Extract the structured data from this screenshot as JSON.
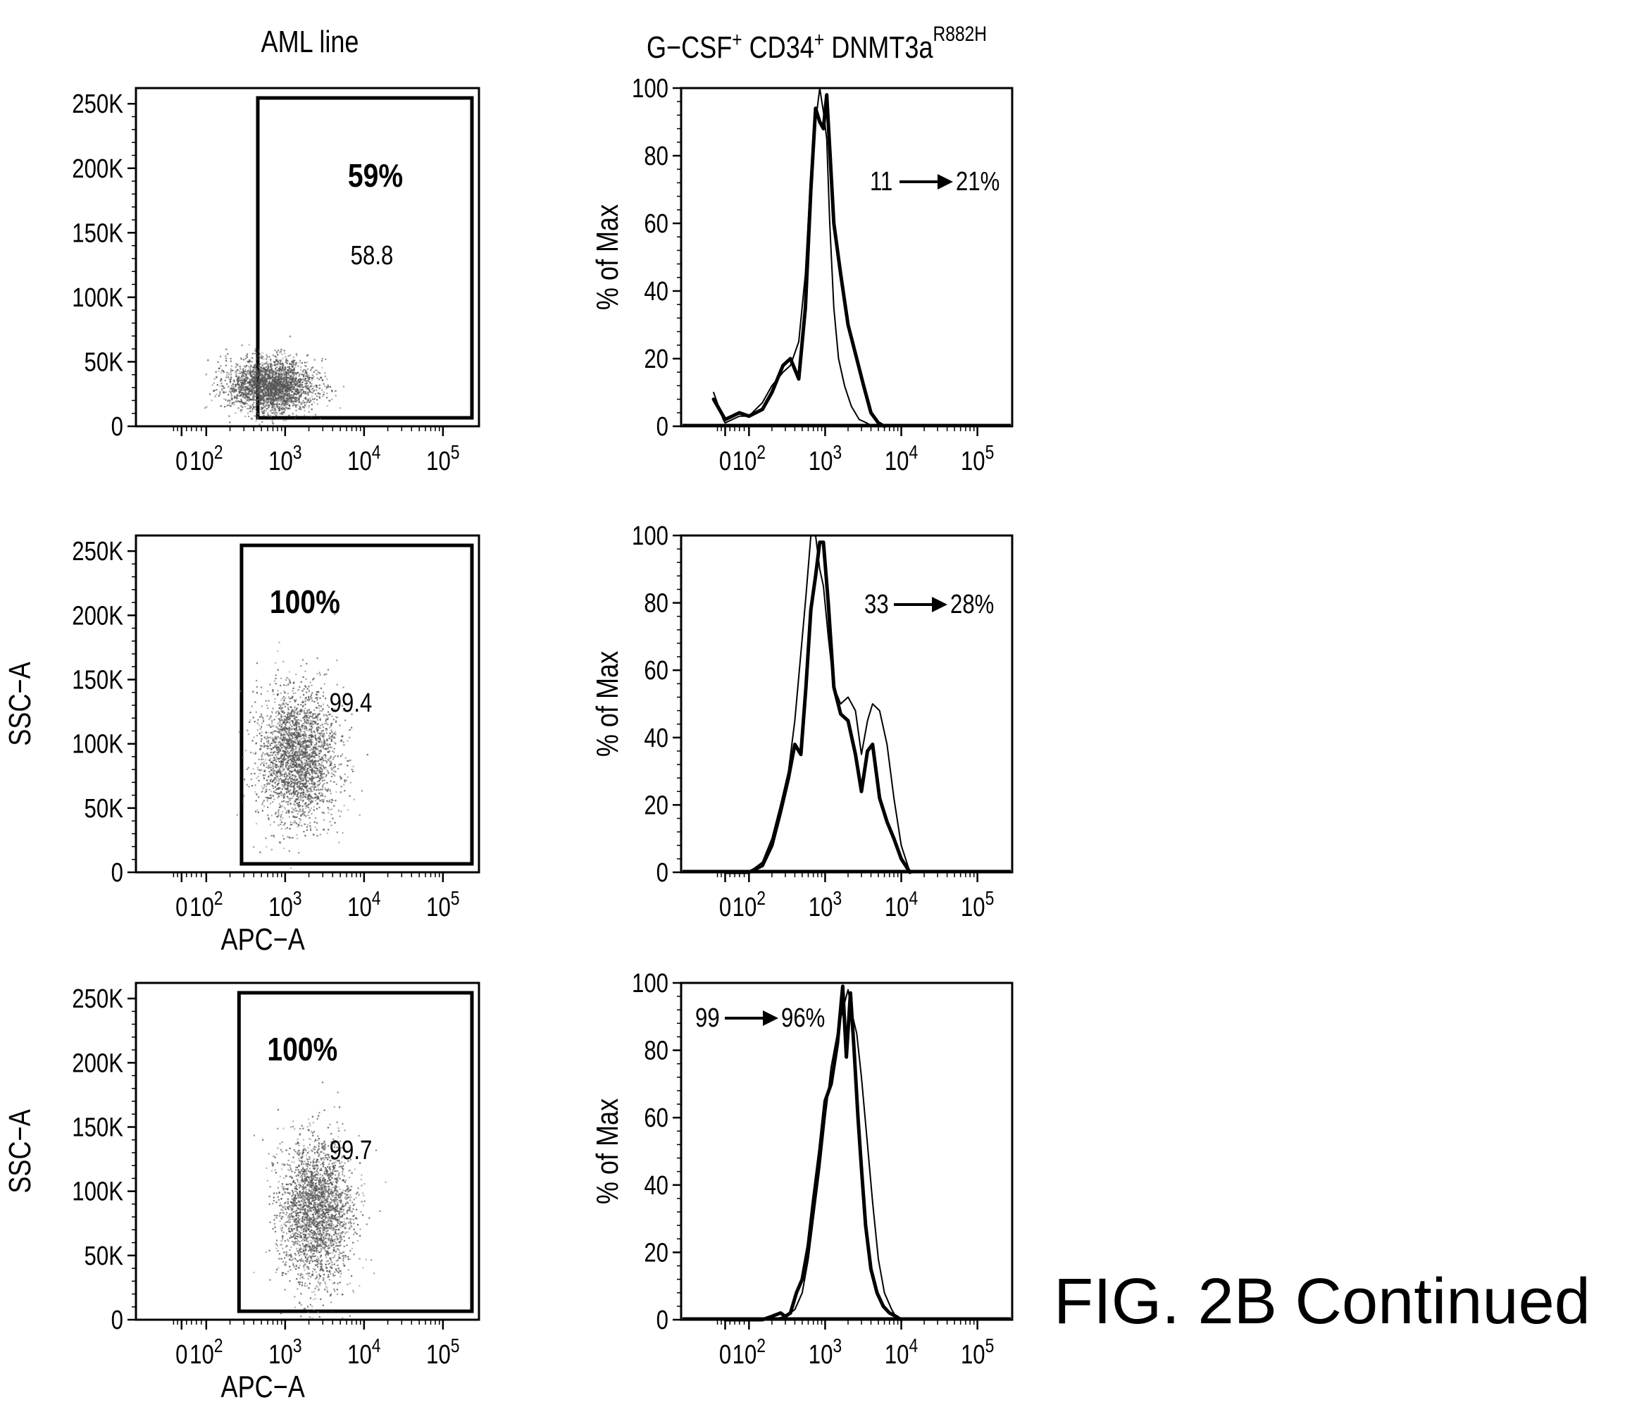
{
  "figure": {
    "caption": "FIG. 2B Continued",
    "column_titles": {
      "left": "AML line",
      "right_main": "G−CSF",
      "right_sup1": "+",
      "right_mid": " CD34",
      "right_sup2": "+",
      "right_tail": " DNMT3a",
      "right_sup3": "R882H"
    }
  },
  "chart_data": [
    {
      "type": "scatter",
      "panel": "dot-plot-1",
      "xlabel": "",
      "ylabel": "",
      "x_scale": "biexponential",
      "x_tick_labels": [
        "0",
        "10^2",
        "10^3",
        "10^4",
        "10^5"
      ],
      "y_tick_labels": [
        "0",
        "50K",
        "100K",
        "150K",
        "200K",
        "250K"
      ],
      "ylim": [
        0,
        262144
      ],
      "gate": {
        "x_range": [
          450,
          262144
        ],
        "y_range": [
          0,
          250000
        ],
        "label": "59%",
        "value_label": "58.8"
      },
      "population": {
        "x_center": 650,
        "y_center": 32000,
        "x_spread_log": 0.5,
        "y_spread": 10000,
        "shape": "flat-ellipse"
      },
      "colors": {
        "ink": "#000000",
        "dots": "#555555"
      }
    },
    {
      "type": "scatter",
      "panel": "dot-plot-2",
      "xlabel": "APC−A",
      "ylabel": "SSC−A",
      "x_scale": "biexponential",
      "x_tick_labels": [
        "0",
        "10^2",
        "10^3",
        "10^4",
        "10^5"
      ],
      "y_tick_labels": [
        "0",
        "50K",
        "100K",
        "150K",
        "200K",
        "250K"
      ],
      "ylim": [
        0,
        262144
      ],
      "gate": {
        "x_range": [
          280,
          262144
        ],
        "y_range": [
          0,
          250000
        ],
        "label": "100%",
        "value_label": "99.4"
      },
      "population": {
        "x_center": 1400,
        "y_center": 90000,
        "x_spread_log": 0.45,
        "y_spread": 26000,
        "shape": "ellipse"
      },
      "colors": {
        "ink": "#000000",
        "dots": "#555555"
      }
    },
    {
      "type": "scatter",
      "panel": "dot-plot-3",
      "xlabel": "APC−A",
      "ylabel": "SSC−A",
      "x_scale": "biexponential",
      "x_tick_labels": [
        "0",
        "10^2",
        "10^3",
        "10^4",
        "10^5"
      ],
      "y_tick_labels": [
        "0",
        "50K",
        "100K",
        "150K",
        "200K",
        "250K"
      ],
      "ylim": [
        0,
        262144
      ],
      "gate": {
        "x_range": [
          260,
          262144
        ],
        "y_range": [
          0,
          250000
        ],
        "label": "100%",
        "value_label": "99.7"
      },
      "population": {
        "x_center": 2400,
        "y_center": 85000,
        "x_spread_log": 0.42,
        "y_spread": 28000,
        "shape": "ellipse"
      },
      "colors": {
        "ink": "#000000",
        "dots": "#555555"
      }
    },
    {
      "type": "line",
      "panel": "histogram-1",
      "xlabel": "",
      "ylabel": "% of Max",
      "x_scale": "biexponential",
      "x_tick_labels": [
        "0",
        "10^2",
        "10^3",
        "10^4",
        "10^5"
      ],
      "y_tick_labels": [
        "0",
        "20",
        "40",
        "60",
        "80",
        "100"
      ],
      "ylim": [
        0,
        100
      ],
      "annotation": {
        "from": "11",
        "to": "21%"
      },
      "series": [
        {
          "style": "thick",
          "x": [
            -60,
            -10,
            0,
            30,
            60,
            100,
            150,
            200,
            280,
            350,
            450,
            550,
            650,
            750,
            850,
            950,
            1050,
            1150,
            1300,
            1600,
            2000,
            2600,
            3200,
            4000,
            5000,
            6000
          ],
          "y": [
            8,
            3,
            2,
            3,
            4,
            3,
            5,
            10,
            18,
            20,
            14,
            35,
            70,
            94,
            90,
            88,
            98,
            82,
            60,
            45,
            30,
            20,
            12,
            4,
            1,
            0
          ]
        },
        {
          "style": "thin",
          "x": [
            -60,
            -10,
            0,
            30,
            60,
            100,
            150,
            200,
            280,
            350,
            450,
            550,
            650,
            750,
            850,
            950,
            1050,
            1150,
            1300,
            1500,
            1800,
            2200,
            2800,
            3500,
            4200
          ],
          "y": [
            10,
            2,
            1,
            2,
            3,
            3,
            7,
            12,
            16,
            18,
            25,
            45,
            75,
            90,
            100,
            93,
            85,
            60,
            35,
            20,
            12,
            6,
            2,
            1,
            0
          ]
        }
      ],
      "colors": {
        "ink": "#000000"
      }
    },
    {
      "type": "line",
      "panel": "histogram-2",
      "xlabel": "",
      "ylabel": "% of Max",
      "x_scale": "biexponential",
      "x_tick_labels": [
        "0",
        "10^2",
        "10^3",
        "10^4",
        "10^5"
      ],
      "y_tick_labels": [
        "0",
        "20",
        "40",
        "60",
        "80",
        "100"
      ],
      "ylim": [
        0,
        100
      ],
      "annotation": {
        "from": "33",
        "to": "28%"
      },
      "series": [
        {
          "style": "thick",
          "x": [
            0,
            100,
            150,
            200,
            260,
            330,
            400,
            480,
            560,
            650,
            750,
            850,
            950,
            1100,
            1300,
            1600,
            2000,
            2500,
            3000,
            3600,
            4200,
            5200,
            6500,
            8000,
            10000,
            13000
          ],
          "y": [
            0,
            0,
            2,
            8,
            18,
            28,
            38,
            35,
            55,
            78,
            88,
            98,
            98,
            80,
            55,
            47,
            45,
            35,
            24,
            36,
            38,
            22,
            15,
            10,
            4,
            0
          ]
        },
        {
          "style": "thin",
          "x": [
            0,
            100,
            150,
            200,
            260,
            330,
            400,
            480,
            560,
            650,
            750,
            850,
            950,
            1100,
            1300,
            1600,
            2000,
            2500,
            3000,
            3600,
            4200,
            5200,
            6500,
            8000,
            10000,
            13000
          ],
          "y": [
            0,
            0,
            3,
            10,
            20,
            30,
            45,
            65,
            82,
            100,
            100,
            90,
            85,
            70,
            55,
            50,
            52,
            48,
            35,
            45,
            50,
            48,
            38,
            22,
            8,
            0
          ]
        }
      ],
      "colors": {
        "ink": "#000000"
      }
    },
    {
      "type": "line",
      "panel": "histogram-3",
      "xlabel": "",
      "ylabel": "% of Max",
      "x_scale": "biexponential",
      "x_tick_labels": [
        "0",
        "10^2",
        "10^3",
        "10^4",
        "10^5"
      ],
      "y_tick_labels": [
        "0",
        "20",
        "40",
        "60",
        "80",
        "100"
      ],
      "ylim": [
        0,
        100
      ],
      "annotation": {
        "from": "99",
        "to": "96%"
      },
      "series": [
        {
          "style": "thick",
          "x": [
            0,
            150,
            200,
            260,
            300,
            350,
            420,
            500,
            600,
            700,
            850,
            1000,
            1200,
            1450,
            1700,
            1900,
            2150,
            2400,
            2700,
            3000,
            3400,
            4000,
            4800,
            5800,
            7000,
            8500,
            10000
          ],
          "y": [
            0,
            0,
            1,
            2,
            1,
            2,
            8,
            12,
            22,
            35,
            50,
            65,
            70,
            82,
            99,
            78,
            97,
            80,
            60,
            45,
            28,
            15,
            8,
            4,
            2,
            1,
            0
          ]
        },
        {
          "style": "thin",
          "x": [
            0,
            200,
            300,
            400,
            500,
            600,
            700,
            850,
            1000,
            1200,
            1450,
            1700,
            2000,
            2300,
            2600,
            3000,
            3500,
            4200,
            5000,
            6000,
            7500,
            9000
          ],
          "y": [
            0,
            0,
            1,
            3,
            8,
            18,
            30,
            45,
            60,
            75,
            85,
            92,
            98,
            90,
            85,
            72,
            55,
            35,
            18,
            8,
            3,
            0
          ]
        }
      ],
      "colors": {
        "ink": "#000000"
      }
    }
  ]
}
